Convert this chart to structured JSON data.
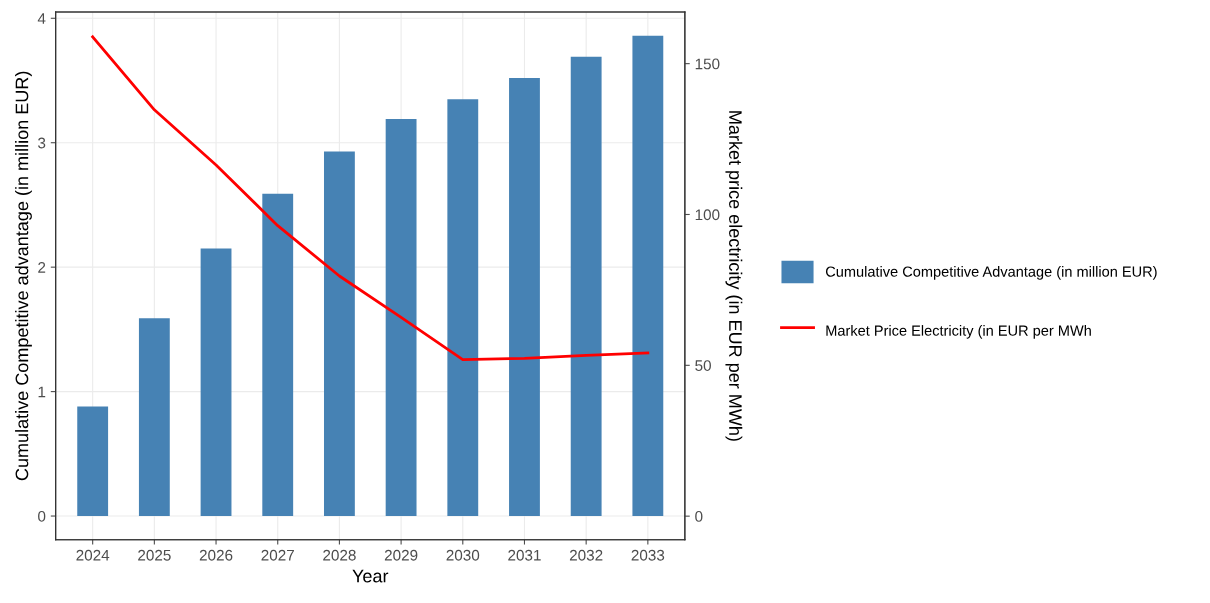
{
  "chart_data": {
    "type": "bar",
    "xlabel": "Year",
    "ylabel": "Cumulative Competitive advantage (in million EUR)",
    "y2label": "Market price electricity (in EUR per MWh)",
    "categories": [
      "2024",
      "2025",
      "2026",
      "2027",
      "2028",
      "2029",
      "2030",
      "2031",
      "2032",
      "2033"
    ],
    "series": [
      {
        "name": "Cumulative Competitive Advantage (in million EUR)",
        "color": "#4682b4",
        "values": [
          0.88,
          1.59,
          2.15,
          2.59,
          2.93,
          3.19,
          3.35,
          3.52,
          3.69,
          3.86
        ]
      },
      {
        "name": "Market Price Electricity (in EUR per MWh",
        "type": "line",
        "axis": "y2",
        "color": "#ff0000",
        "values": [
          158.9,
          134.7,
          116.4,
          96.3,
          79.6,
          65.9,
          51.9,
          52.3,
          53.3,
          54.1
        ]
      }
    ],
    "ylim": [
      -0.19,
      4.05
    ],
    "yticks": [
      0,
      1,
      2,
      3,
      4
    ],
    "y2lim": [
      -7.8,
      167.1
    ],
    "y2ticks": [
      0,
      50,
      100,
      150
    ],
    "grid": true,
    "legend": "right",
    "line_style": "solid"
  }
}
